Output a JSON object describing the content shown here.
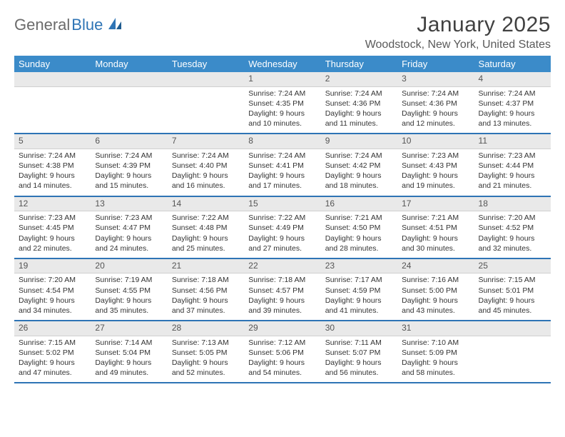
{
  "brand": {
    "part1": "General",
    "part2": "Blue"
  },
  "title": "January 2025",
  "location": "Woodstock, New York, United States",
  "colors": {
    "header_bg": "#3b8bc9",
    "header_text": "#ffffff",
    "daynum_bg": "#e9e9e9",
    "row_border": "#2e74b5",
    "text": "#333333"
  },
  "weekdays": [
    "Sunday",
    "Monday",
    "Tuesday",
    "Wednesday",
    "Thursday",
    "Friday",
    "Saturday"
  ],
  "weeks": [
    {
      "nums": [
        "",
        "",
        "",
        "1",
        "2",
        "3",
        "4"
      ],
      "cells": [
        "",
        "",
        "",
        "Sunrise: 7:24 AM\nSunset: 4:35 PM\nDaylight: 9 hours and 10 minutes.",
        "Sunrise: 7:24 AM\nSunset: 4:36 PM\nDaylight: 9 hours and 11 minutes.",
        "Sunrise: 7:24 AM\nSunset: 4:36 PM\nDaylight: 9 hours and 12 minutes.",
        "Sunrise: 7:24 AM\nSunset: 4:37 PM\nDaylight: 9 hours and 13 minutes."
      ]
    },
    {
      "nums": [
        "5",
        "6",
        "7",
        "8",
        "9",
        "10",
        "11"
      ],
      "cells": [
        "Sunrise: 7:24 AM\nSunset: 4:38 PM\nDaylight: 9 hours and 14 minutes.",
        "Sunrise: 7:24 AM\nSunset: 4:39 PM\nDaylight: 9 hours and 15 minutes.",
        "Sunrise: 7:24 AM\nSunset: 4:40 PM\nDaylight: 9 hours and 16 minutes.",
        "Sunrise: 7:24 AM\nSunset: 4:41 PM\nDaylight: 9 hours and 17 minutes.",
        "Sunrise: 7:24 AM\nSunset: 4:42 PM\nDaylight: 9 hours and 18 minutes.",
        "Sunrise: 7:23 AM\nSunset: 4:43 PM\nDaylight: 9 hours and 19 minutes.",
        "Sunrise: 7:23 AM\nSunset: 4:44 PM\nDaylight: 9 hours and 21 minutes."
      ]
    },
    {
      "nums": [
        "12",
        "13",
        "14",
        "15",
        "16",
        "17",
        "18"
      ],
      "cells": [
        "Sunrise: 7:23 AM\nSunset: 4:45 PM\nDaylight: 9 hours and 22 minutes.",
        "Sunrise: 7:23 AM\nSunset: 4:47 PM\nDaylight: 9 hours and 24 minutes.",
        "Sunrise: 7:22 AM\nSunset: 4:48 PM\nDaylight: 9 hours and 25 minutes.",
        "Sunrise: 7:22 AM\nSunset: 4:49 PM\nDaylight: 9 hours and 27 minutes.",
        "Sunrise: 7:21 AM\nSunset: 4:50 PM\nDaylight: 9 hours and 28 minutes.",
        "Sunrise: 7:21 AM\nSunset: 4:51 PM\nDaylight: 9 hours and 30 minutes.",
        "Sunrise: 7:20 AM\nSunset: 4:52 PM\nDaylight: 9 hours and 32 minutes."
      ]
    },
    {
      "nums": [
        "19",
        "20",
        "21",
        "22",
        "23",
        "24",
        "25"
      ],
      "cells": [
        "Sunrise: 7:20 AM\nSunset: 4:54 PM\nDaylight: 9 hours and 34 minutes.",
        "Sunrise: 7:19 AM\nSunset: 4:55 PM\nDaylight: 9 hours and 35 minutes.",
        "Sunrise: 7:18 AM\nSunset: 4:56 PM\nDaylight: 9 hours and 37 minutes.",
        "Sunrise: 7:18 AM\nSunset: 4:57 PM\nDaylight: 9 hours and 39 minutes.",
        "Sunrise: 7:17 AM\nSunset: 4:59 PM\nDaylight: 9 hours and 41 minutes.",
        "Sunrise: 7:16 AM\nSunset: 5:00 PM\nDaylight: 9 hours and 43 minutes.",
        "Sunrise: 7:15 AM\nSunset: 5:01 PM\nDaylight: 9 hours and 45 minutes."
      ]
    },
    {
      "nums": [
        "26",
        "27",
        "28",
        "29",
        "30",
        "31",
        ""
      ],
      "cells": [
        "Sunrise: 7:15 AM\nSunset: 5:02 PM\nDaylight: 9 hours and 47 minutes.",
        "Sunrise: 7:14 AM\nSunset: 5:04 PM\nDaylight: 9 hours and 49 minutes.",
        "Sunrise: 7:13 AM\nSunset: 5:05 PM\nDaylight: 9 hours and 52 minutes.",
        "Sunrise: 7:12 AM\nSunset: 5:06 PM\nDaylight: 9 hours and 54 minutes.",
        "Sunrise: 7:11 AM\nSunset: 5:07 PM\nDaylight: 9 hours and 56 minutes.",
        "Sunrise: 7:10 AM\nSunset: 5:09 PM\nDaylight: 9 hours and 58 minutes.",
        ""
      ]
    }
  ]
}
